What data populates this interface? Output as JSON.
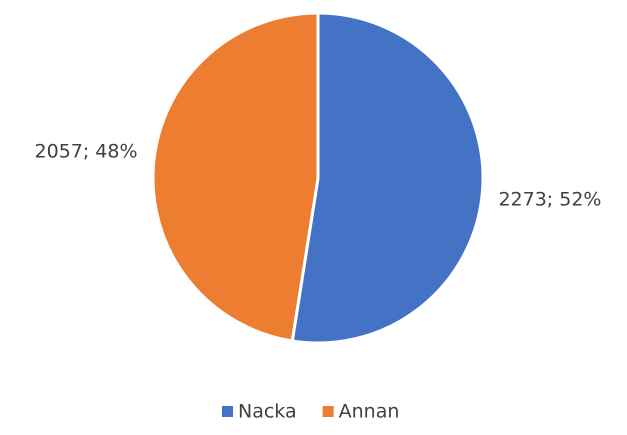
{
  "chart_data": {
    "type": "pie",
    "categories": [
      "Nacka",
      "Annan"
    ],
    "values": [
      2273,
      2057
    ],
    "value_labels": [
      "2273; 52%",
      "2057; 48%"
    ],
    "colors": [
      "#4472c4",
      "#ed7d31"
    ],
    "legend": "bottom"
  }
}
